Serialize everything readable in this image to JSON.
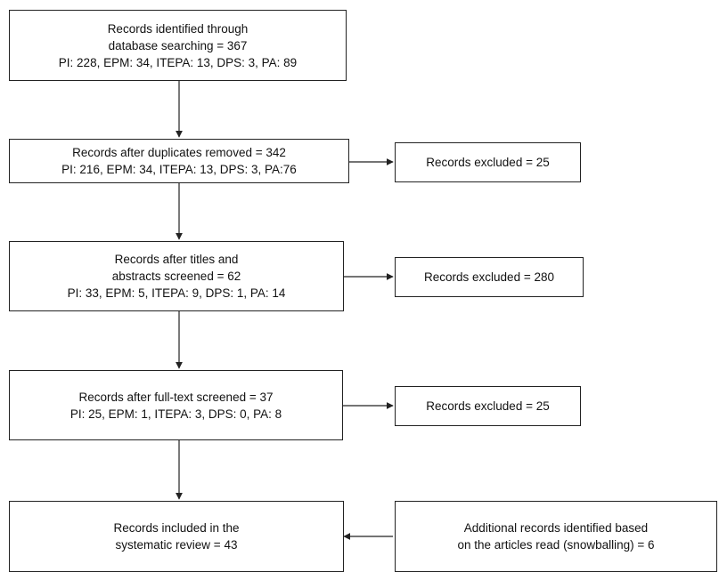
{
  "boxes": {
    "identified": {
      "lines": [
        "Records identified through",
        "database searching = 367",
        "PI: 228, EPM: 34, ITEPA: 13, DPS: 3, PA: 89"
      ]
    },
    "dedup": {
      "lines": [
        "Records after duplicates removed = 342",
        "PI: 216, EPM: 34, ITEPA: 13, DPS: 3, PA:76"
      ]
    },
    "excluded_1": {
      "lines": [
        "Records excluded = 25"
      ]
    },
    "titles": {
      "lines": [
        "Records after titles and",
        "abstracts screened = 62",
        "PI: 33, EPM: 5, ITEPA: 9, DPS: 1, PA: 14"
      ]
    },
    "excluded_2": {
      "lines": [
        "Records excluded = 280"
      ]
    },
    "fulltext": {
      "lines": [
        "Records after full-text screened = 37",
        "PI: 25, EPM: 1, ITEPA: 3, DPS: 0, PA: 8"
      ]
    },
    "excluded_3": {
      "lines": [
        "Records excluded = 25"
      ]
    },
    "included": {
      "lines": [
        "Records included in the",
        "systematic review = 43"
      ]
    },
    "snowballing": {
      "lines": [
        "Additional records identified based",
        "on the articles read (snowballing) = 6"
      ]
    }
  },
  "colors": {
    "stroke": "#222222",
    "background": "#ffffff",
    "text": "#111111"
  }
}
